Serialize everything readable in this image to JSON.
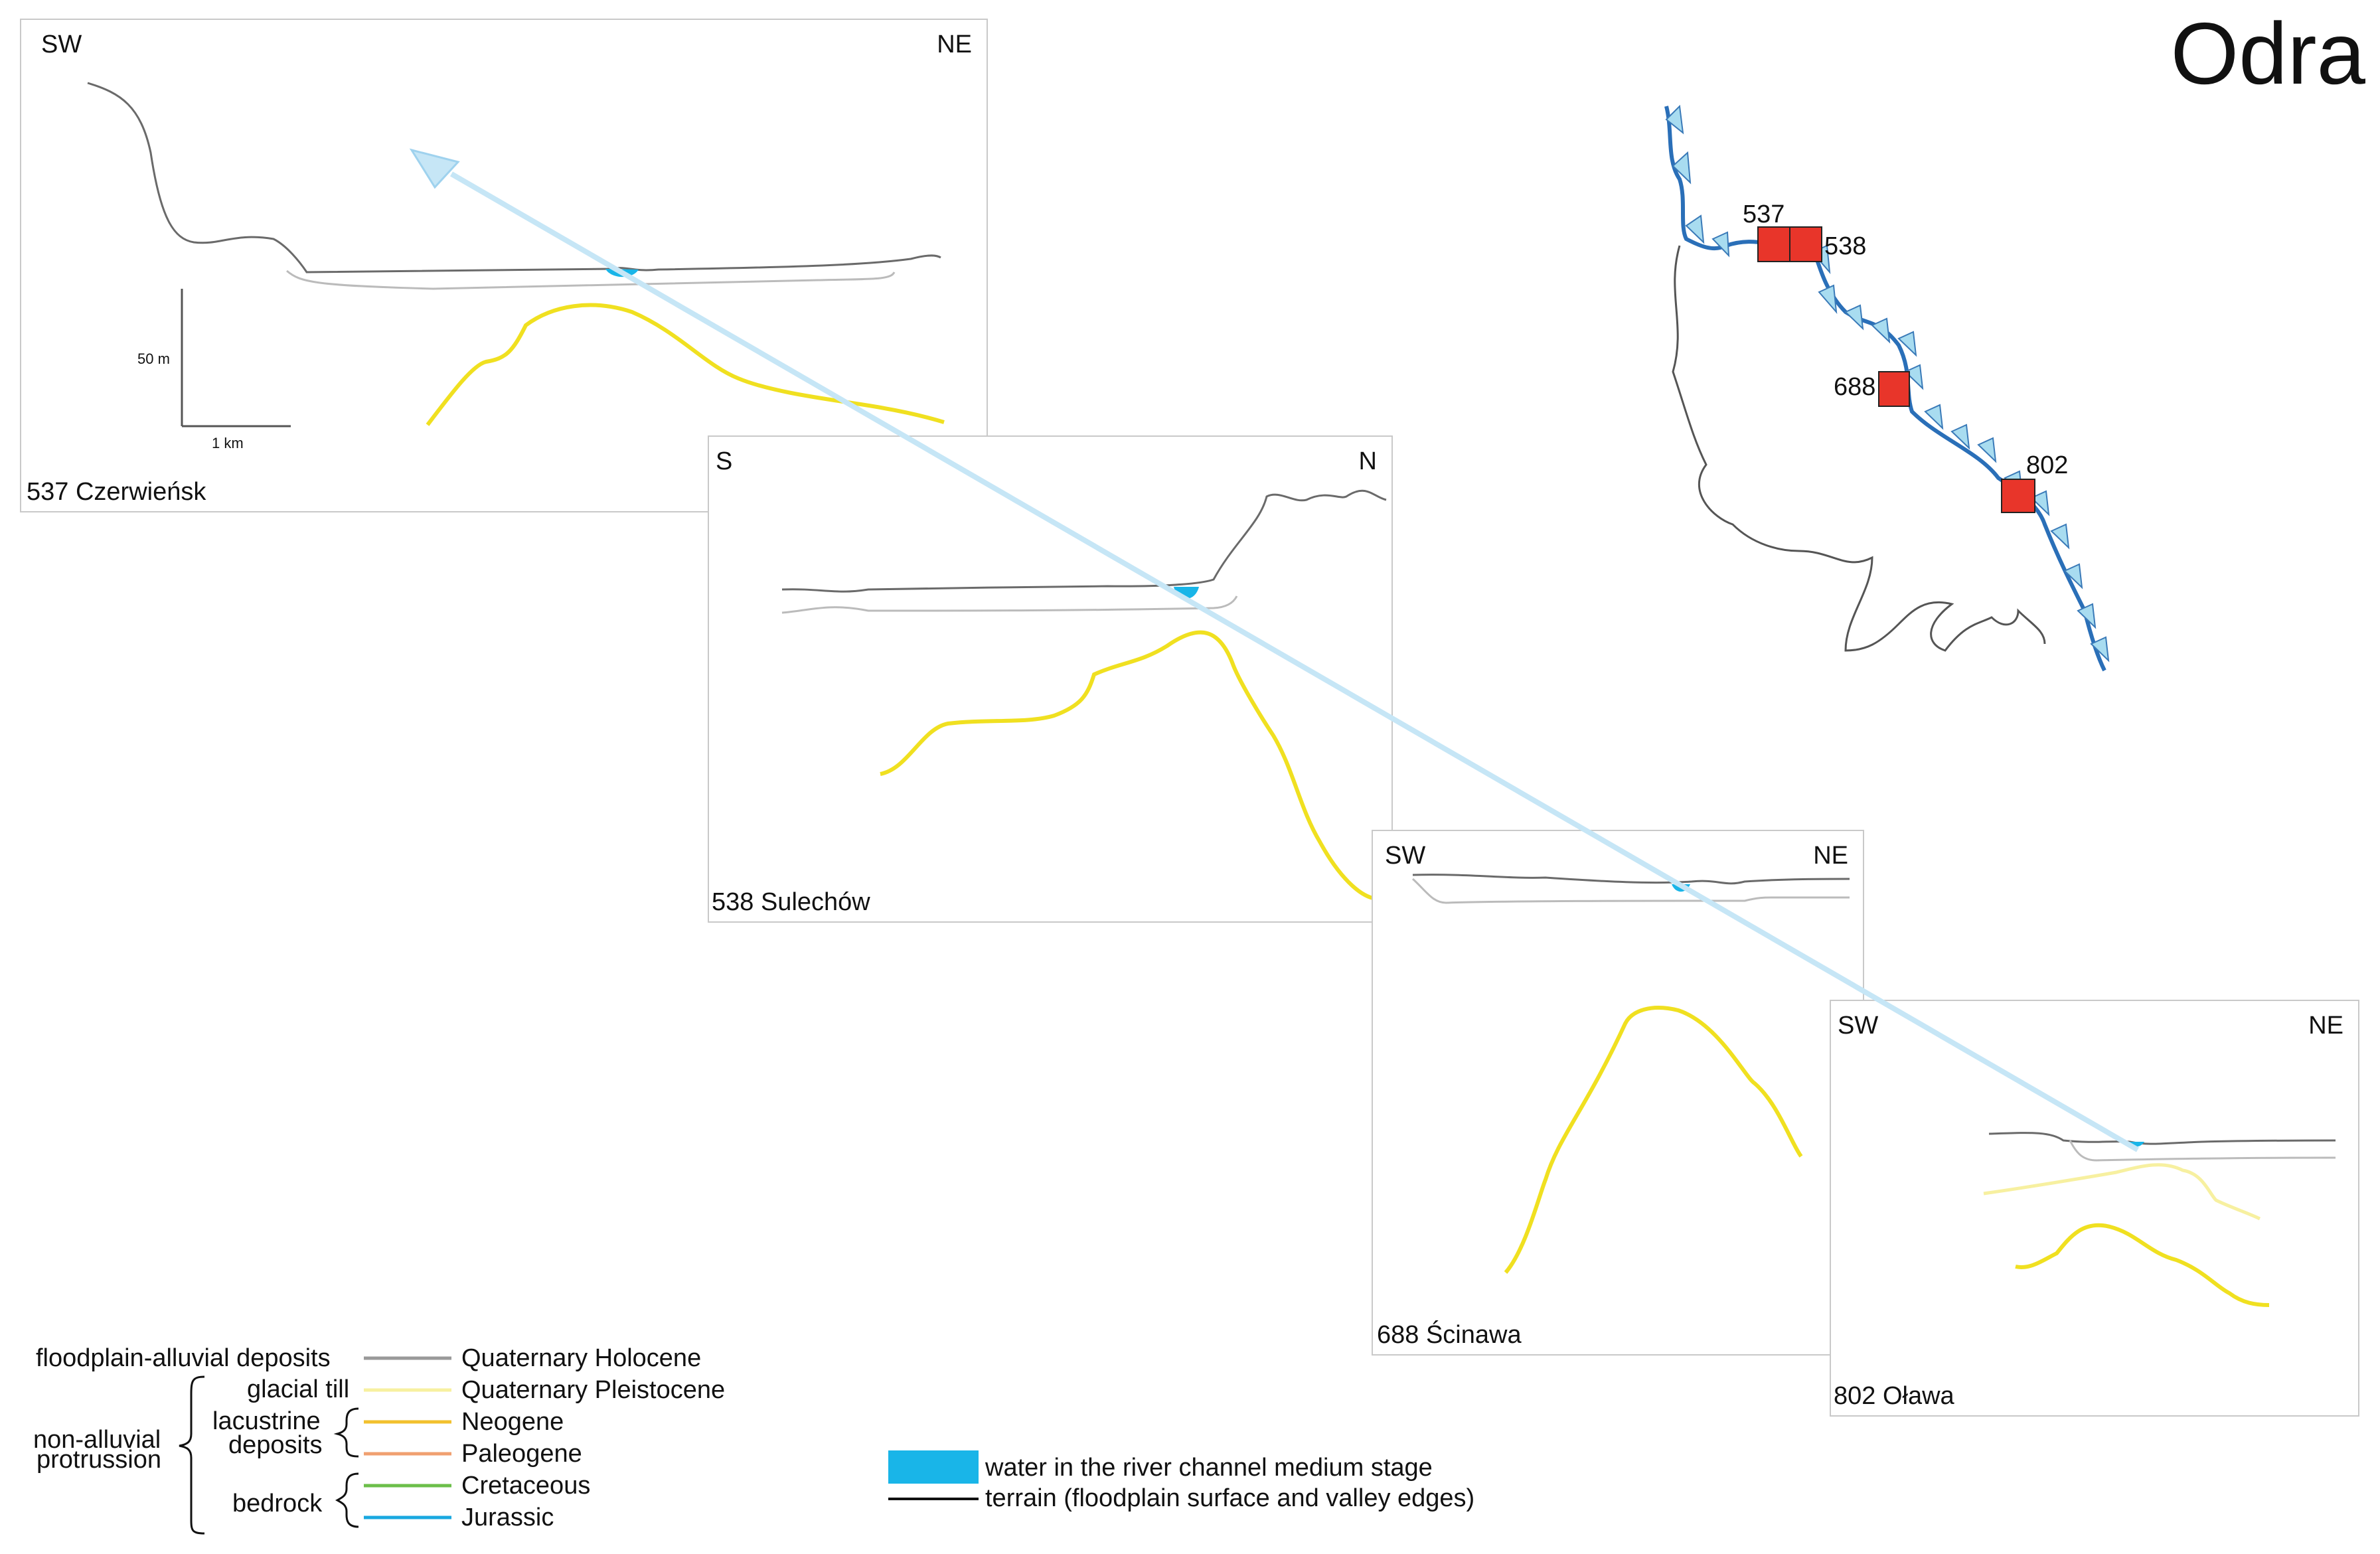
{
  "title": "Odra",
  "panels": [
    {
      "name": "537 Czerwieńsk",
      "left": "SW",
      "right": "NE"
    },
    {
      "name": "538 Sulechów",
      "left": "S",
      "right": "N"
    },
    {
      "name": "688 Ścinawa",
      "left": "SW",
      "right": "NE"
    },
    {
      "name": "802 Oława",
      "left": "SW",
      "right": "NE"
    }
  ],
  "scale": {
    "vertical": "50 m",
    "horizontal": "1 km"
  },
  "map": {
    "sites": [
      "537",
      "538",
      "688",
      "802"
    ]
  },
  "legend": {
    "floodplain": "floodplain-alluvial deposits",
    "glacial_till": "glacial till",
    "non_alluvial": "non-alluvial",
    "protrussion": "protrussion",
    "lacustrine": "lacustrine",
    "deposits": "deposits",
    "bedrock": "bedrock",
    "items": [
      {
        "label": "Quaternary Holocene",
        "color": "#999999"
      },
      {
        "label": "Quaternary Pleistocene",
        "color": "#f7f0a0"
      },
      {
        "label": "Neogene",
        "color": "#f2c12e"
      },
      {
        "label": "Paleogene",
        "color": "#f0a070"
      },
      {
        "label": "Cretaceous",
        "color": "#6cbf4a"
      },
      {
        "label": "Jurassic",
        "color": "#19a8e0"
      }
    ],
    "water": "water in the river channel medium stage",
    "terrain": "terrain (floodplain surface and valley edges)"
  },
  "colors": {
    "neogene_curve": "#f0e020",
    "arrow": "#c6e6f6",
    "site_box": "#e8352a",
    "river_fill": "#a8dcf0",
    "river_line": "#2a6fb8",
    "water": "#19b5e8"
  }
}
